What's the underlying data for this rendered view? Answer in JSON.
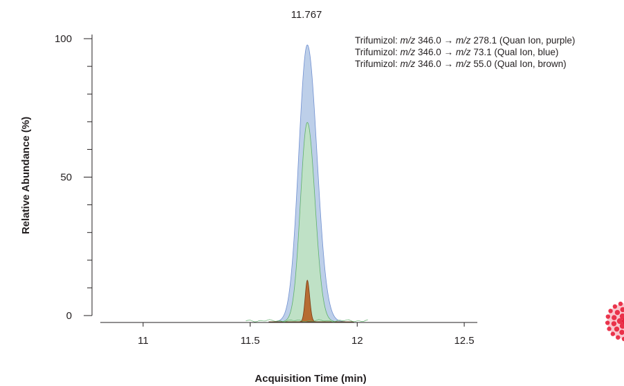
{
  "chart_data": {
    "type": "area",
    "xlabel": "Acquisition Time (min)",
    "ylabel": "Relative Abundance (%)",
    "xlim": [
      10.8,
      12.6
    ],
    "ylim": [
      0,
      100
    ],
    "x_ticks": [
      11,
      11.5,
      12,
      12.5
    ],
    "x_tick_labels": [
      "11",
      "11.5",
      "12",
      "12.5"
    ],
    "y_ticks": [
      0,
      50,
      100
    ],
    "y_tick_labels": [
      "0",
      "50",
      "100"
    ],
    "y_minor_step": 10,
    "peak_label": "11.767",
    "peak_time": 11.767,
    "series": [
      {
        "key": "blue",
        "color_fill": "#b9cce8",
        "color_line": "#6f8fd0",
        "apex": 100,
        "left_width": 0.04,
        "right_width": 0.045
      },
      {
        "key": "green",
        "color_fill": "#bfe2c4",
        "color_line": "#5fb06b",
        "apex": 72,
        "left_width": 0.032,
        "right_width": 0.036
      },
      {
        "key": "brown",
        "color_fill": "#b5652b",
        "color_line": "#7a3a14",
        "apex": 15,
        "left_width": 0.01,
        "right_width": 0.011
      }
    ],
    "legend": [
      {
        "pre": "Trifumizol: ",
        "mz1": "m/z",
        "v1": " 346.0 → ",
        "mz2": "m/z",
        "v2": " 278.1 (Quan Ion, purple)"
      },
      {
        "pre": "Trifumizol: ",
        "mz1": "m/z",
        "v1": " 346.0 → ",
        "mz2": "m/z",
        "v2": " 73.1 (Qual Ion, blue)"
      },
      {
        "pre": "Trifumizol: ",
        "mz1": "m/z",
        "v1": " 346.0 → ",
        "mz2": "m/z",
        "v2": " 55.0 (Qual Ion, brown)"
      }
    ]
  },
  "logo": {
    "name": "raspberry-logo",
    "color": "#e8203b"
  }
}
